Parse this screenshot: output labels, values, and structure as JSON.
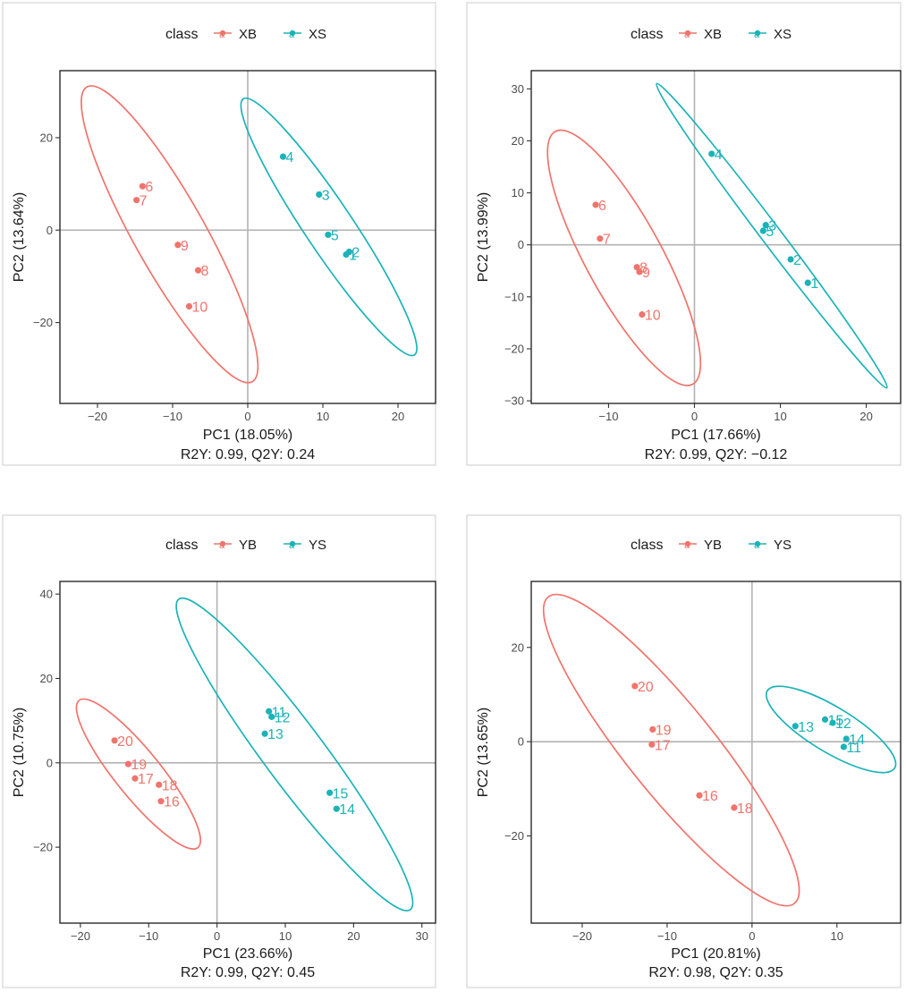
{
  "chart_data": [
    {
      "type": "scatter",
      "legend": {
        "title": "class",
        "position": "top",
        "entries": [
          "XB",
          "XS"
        ]
      },
      "colors": {
        "first": "#f0746c",
        "second": "#1bb3b8"
      },
      "xlabel": "PC1 (18.05%)",
      "ylabel": "PC2 (13.64%)",
      "caption": "R2Y: 0.99, Q2Y: 0.24",
      "xlim": [
        -25,
        25
      ],
      "ylim": [
        -37.5,
        34.5
      ],
      "xticks": [
        -20,
        -10,
        0,
        10,
        20
      ],
      "yticks": [
        -20,
        0,
        20
      ],
      "tick_labels": {
        "x": [
          "−20",
          "−10",
          "0",
          "10",
          "20"
        ],
        "y": [
          "−20",
          "0",
          "20"
        ]
      },
      "series": [
        {
          "name": "XB",
          "points": [
            {
              "label": "6",
              "x": -14.0,
              "y": 9.5
            },
            {
              "label": "7",
              "x": -14.8,
              "y": 6.5
            },
            {
              "label": "9",
              "x": -9.3,
              "y": -3.2
            },
            {
              "label": "8",
              "x": -6.6,
              "y": -8.7
            },
            {
              "label": "10",
              "x": -7.8,
              "y": -16.5
            }
          ]
        },
        {
          "name": "XS",
          "points": [
            {
              "label": "4",
              "x": 4.7,
              "y": 15.9
            },
            {
              "label": "3",
              "x": 9.5,
              "y": 7.7
            },
            {
              "label": "5",
              "x": 10.7,
              "y": -1.0
            },
            {
              "label": "2",
              "x": 13.5,
              "y": -4.7
            },
            {
              "label": "1",
              "x": 13.1,
              "y": -5.3
            }
          ]
        }
      ],
      "ellipses": [
        {
          "series": "XB",
          "points": [
            [
              -21.4,
              31.0
            ],
            [
              0.6,
              -32.8
            ]
          ],
          "half_width": 4.75
        },
        {
          "series": "XS",
          "points": [
            [
              -0.6,
              28.4
            ],
            [
              22.2,
              -27.0
            ]
          ],
          "half_width": 3.2
        }
      ]
    },
    {
      "type": "scatter",
      "legend": {
        "title": "class",
        "position": "top",
        "entries": [
          "XB",
          "XS"
        ]
      },
      "colors": {
        "first": "#f0746c",
        "second": "#1bb3b8"
      },
      "xlabel": "PC1 (17.66%)",
      "ylabel": "PC2 (13.99%)",
      "caption": "R2Y: 0.99, Q2Y: −0.12",
      "xlim": [
        -19,
        24
      ],
      "ylim": [
        -30.5,
        33.5
      ],
      "xticks": [
        -10,
        0,
        10,
        20
      ],
      "yticks": [
        -30,
        -20,
        -10,
        0,
        10,
        20,
        30
      ],
      "tick_labels": {
        "x": [
          "−10",
          "0",
          "10",
          "20"
        ],
        "y": [
          "−30",
          "−20",
          "−10",
          "0",
          "10",
          "20",
          "30"
        ]
      },
      "series": [
        {
          "name": "XB",
          "points": [
            {
              "label": "6",
              "x": -11.5,
              "y": 7.7
            },
            {
              "label": "7",
              "x": -11.0,
              "y": 1.2
            },
            {
              "label": "8",
              "x": -6.7,
              "y": -4.3
            },
            {
              "label": "9",
              "x": -6.4,
              "y": -5.2
            },
            {
              "label": "10",
              "x": -6.1,
              "y": -13.4
            }
          ]
        },
        {
          "name": "XS",
          "points": [
            {
              "label": "4",
              "x": 2.0,
              "y": 17.5
            },
            {
              "label": "3",
              "x": 8.3,
              "y": 3.8
            },
            {
              "label": "5",
              "x": 8.0,
              "y": 2.7
            },
            {
              "label": "2",
              "x": 11.2,
              "y": -2.8
            },
            {
              "label": "1",
              "x": 13.2,
              "y": -7.3
            }
          ]
        }
      ],
      "ellipses": [
        {
          "series": "XB",
          "points": [
            [
              -16.2,
              21.8
            ],
            [
              -0.2,
              -26.8
            ]
          ],
          "half_width": 4.45
        },
        {
          "series": "XS",
          "points": [
            [
              -4.4,
              31.0
            ],
            [
              22.4,
              -27.5
            ]
          ],
          "half_width": 1.15
        }
      ]
    },
    {
      "type": "scatter",
      "legend": {
        "title": "class",
        "position": "top",
        "entries": [
          "YB",
          "YS"
        ]
      },
      "colors": {
        "first": "#f0746c",
        "second": "#1bb3b8"
      },
      "xlabel": "PC1 (23.66%)",
      "ylabel": "PC2 (10.75%)",
      "caption": "R2Y: 0.99, Q2Y: 0.45",
      "xlim": [
        -23,
        32
      ],
      "ylim": [
        -38,
        43
      ],
      "xticks": [
        -20,
        -10,
        0,
        10,
        20,
        30
      ],
      "yticks": [
        -20,
        0,
        20,
        40
      ],
      "tick_labels": {
        "x": [
          "−20",
          "−10",
          "0",
          "10",
          "20",
          "30"
        ],
        "y": [
          "−20",
          "0",
          "20",
          "40"
        ]
      },
      "series": [
        {
          "name": "YB",
          "points": [
            {
              "label": "20",
              "x": -15.0,
              "y": 5.3
            },
            {
              "label": "19",
              "x": -13.0,
              "y": -0.3
            },
            {
              "label": "17",
              "x": -12.0,
              "y": -3.7
            },
            {
              "label": "18",
              "x": -8.5,
              "y": -5.2
            },
            {
              "label": "16",
              "x": -8.2,
              "y": -9.1
            }
          ]
        },
        {
          "name": "YS",
          "points": [
            {
              "label": "11",
              "x": 7.6,
              "y": 12.2
            },
            {
              "label": "12",
              "x": 8.0,
              "y": 10.9
            },
            {
              "label": "13",
              "x": 7.0,
              "y": 6.9
            },
            {
              "label": "15",
              "x": 16.5,
              "y": -7.1
            },
            {
              "label": "14",
              "x": 17.5,
              "y": -10.9
            }
          ]
        }
      ],
      "ellipses": [
        {
          "series": "YB",
          "points": [
            [
              -20.2,
              14.8
            ],
            [
              -2.8,
              -20.1
            ]
          ],
          "half_width": 3.35
        },
        {
          "series": "YS",
          "points": [
            [
              -5.6,
              38.8
            ],
            [
              28.3,
              -34.8
            ]
          ],
          "half_width": 4.4
        }
      ]
    },
    {
      "type": "scatter",
      "legend": {
        "title": "class",
        "position": "top",
        "entries": [
          "YB",
          "YS"
        ]
      },
      "colors": {
        "first": "#f0746c",
        "second": "#1bb3b8"
      },
      "xlabel": "PC1 (20.81%)",
      "ylabel": "PC2 (13.65%)",
      "caption": "R2Y: 0.98, Q2Y: 0.35",
      "xlim": [
        -26,
        17.5
      ],
      "ylim": [
        -38.5,
        34
      ],
      "xticks": [
        -20,
        -10,
        0,
        10
      ],
      "yticks": [
        -20,
        0,
        20
      ],
      "tick_labels": {
        "x": [
          "−20",
          "−10",
          "0",
          "10"
        ],
        "y": [
          "−20",
          "0",
          "20"
        ]
      },
      "series": [
        {
          "name": "YB",
          "points": [
            {
              "label": "20",
              "x": -13.8,
              "y": 11.8
            },
            {
              "label": "19",
              "x": -11.7,
              "y": 2.6
            },
            {
              "label": "17",
              "x": -11.8,
              "y": -0.6
            },
            {
              "label": "16",
              "x": -6.2,
              "y": -11.4
            },
            {
              "label": "18",
              "x": -2.1,
              "y": -14.0
            }
          ]
        },
        {
          "name": "YS",
          "points": [
            {
              "label": "13",
              "x": 5.1,
              "y": 3.3
            },
            {
              "label": "15",
              "x": 8.6,
              "y": 4.7
            },
            {
              "label": "12",
              "x": 9.5,
              "y": 4.0
            },
            {
              "label": "14",
              "x": 11.1,
              "y": 0.6
            },
            {
              "label": "11",
              "x": 10.8,
              "y": -1.1
            }
          ]
        }
      ],
      "ellipses": [
        {
          "series": "YB",
          "points": [
            [
              -24.0,
              30.7
            ],
            [
              5.0,
              -34.3
            ]
          ],
          "half_width": 5.2
        },
        {
          "series": "YS",
          "points": [
            [
              1.8,
              10.8
            ],
            [
              16.8,
              -5.6
            ]
          ],
          "half_width": 2.65
        }
      ]
    }
  ]
}
